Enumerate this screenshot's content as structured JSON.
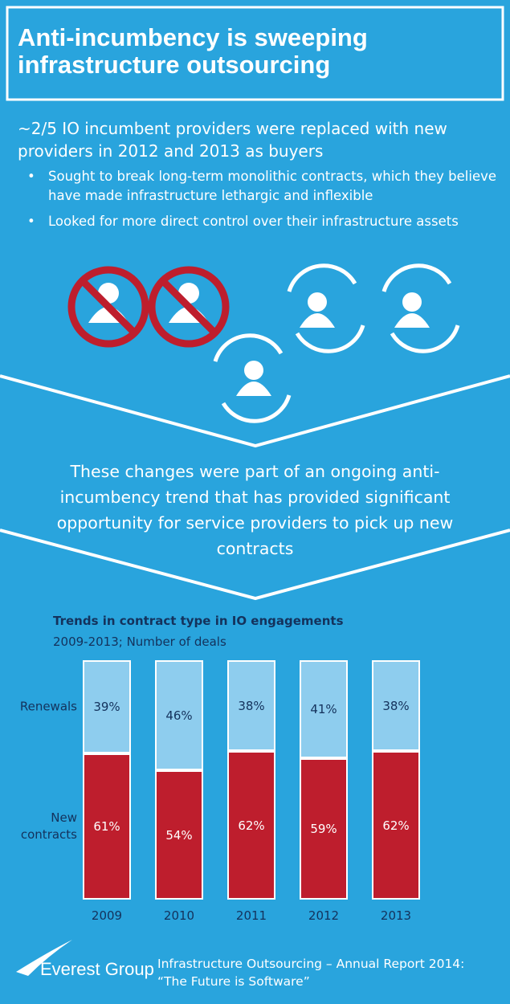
{
  "header": {
    "title": "Anti-incumbency is sweeping infrastructure outsourcing"
  },
  "intro": "~2/5 IO incumbent providers were replaced with new providers in 2012 and 2013 as buyers",
  "bullets": [
    "Sought to break long-term monolithic contracts, which they believe have made infrastructure lethargic and inflexible",
    "Looked for more direct control over their infrastructure assets"
  ],
  "callout": "These changes were part of an ongoing anti-incumbency trend that has provided significant opportunity for service providers to pick up new contracts",
  "chart_data": {
    "type": "stacked_bar",
    "title": "Trends in contract type in IO engagements",
    "subtitle": "2009-2013; Number of deals",
    "categories": [
      "2009",
      "2010",
      "2011",
      "2012",
      "2013"
    ],
    "series": [
      {
        "name": "New contracts",
        "color": "#be1e2d",
        "values": [
          61,
          54,
          62,
          59,
          62
        ],
        "value_labels": [
          "61%",
          "54%",
          "62%",
          "59%",
          "62%"
        ]
      },
      {
        "name": "Renewals",
        "color": "#8ecdee",
        "values": [
          39,
          46,
          38,
          41,
          38
        ],
        "value_labels": [
          "39%",
          "46%",
          "38%",
          "41%",
          "38%"
        ]
      }
    ]
  },
  "footer": {
    "brand": "Everest Group",
    "report": "Infrastructure Outsourcing – Annual Report 2014: “The Future is Software”"
  }
}
